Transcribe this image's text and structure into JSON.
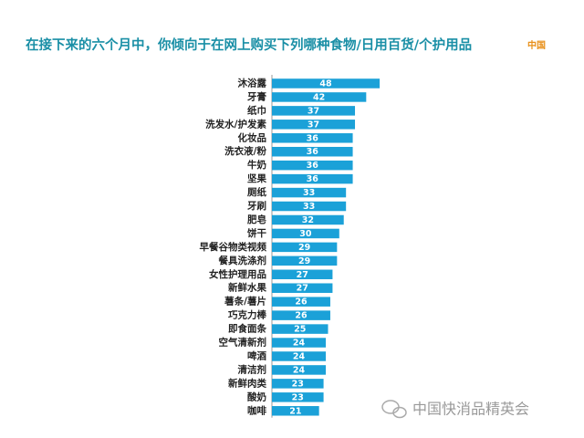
{
  "chart_data": {
    "type": "bar",
    "orientation": "horizontal",
    "title": "在接下来的六个月中，你倾向于在网上购买下列哪种食物/日用百货/个护用品",
    "subtitle": "中国",
    "watermark": "中国快消品精英会",
    "color": "#1ba1d8",
    "categories": [
      "沐浴露",
      "牙膏",
      "纸巾",
      "洗发水/护发素",
      "化妆品",
      "洗衣液/粉",
      "牛奶",
      "坚果",
      "厕纸",
      "牙刷",
      "肥皂",
      "饼干",
      "早餐谷物类视频",
      "餐具洗涤剂",
      "女性护理用品",
      "新鲜水果",
      "薯条/薯片",
      "巧克力棒",
      "即食面条",
      "空气清新剂",
      "啤酒",
      "清洁剂",
      "新鲜肉类",
      "酸奶",
      "咖啡"
    ],
    "values": [
      48,
      42,
      37,
      37,
      36,
      36,
      36,
      36,
      33,
      33,
      32,
      30,
      29,
      29,
      27,
      27,
      26,
      26,
      25,
      24,
      24,
      24,
      23,
      23,
      21
    ]
  }
}
